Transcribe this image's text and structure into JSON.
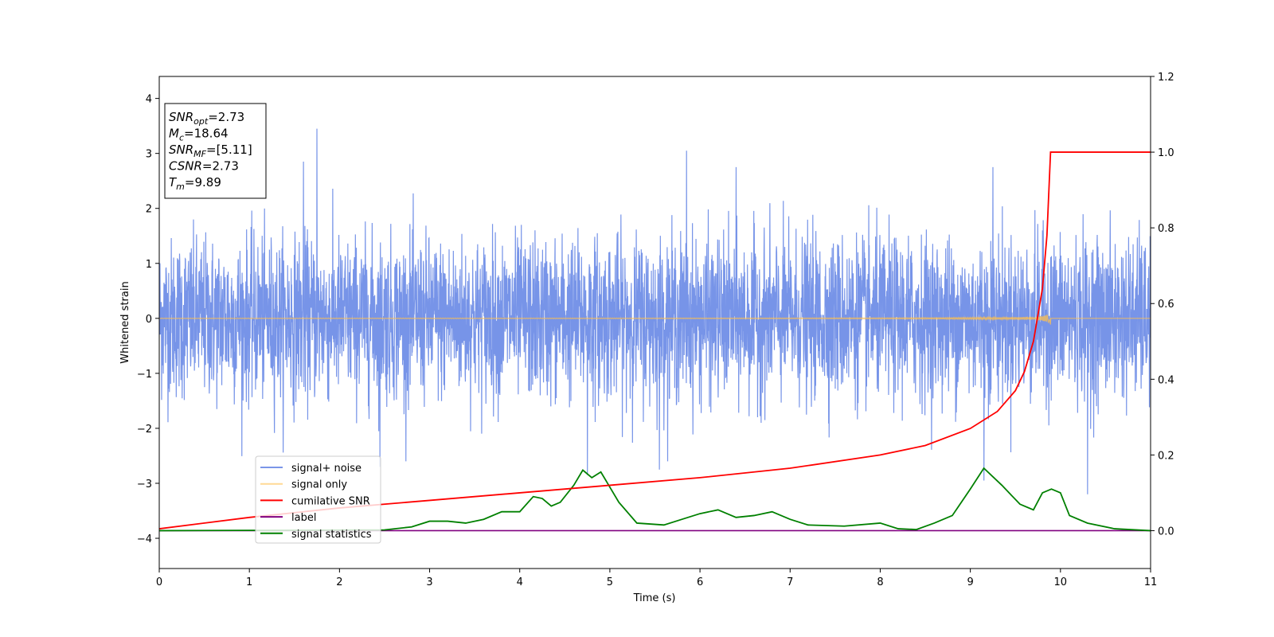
{
  "chart_data": {
    "type": "line",
    "xlabel": "Time (s)",
    "ylabel": "Whitened strain",
    "xlim": [
      0,
      11
    ],
    "ylim": [
      -4.55,
      4.4
    ],
    "y2lim": [
      -0.1,
      1.2
    ],
    "xticks": [
      "0",
      "1",
      "2",
      "3",
      "4",
      "5",
      "6",
      "7",
      "8",
      "9",
      "10",
      "11"
    ],
    "yticks": [
      "−4",
      "−3",
      "−2",
      "−1",
      "0",
      "1",
      "2",
      "3",
      "4"
    ],
    "y2ticks": [
      "0.0",
      "0.2",
      "0.4",
      "0.6",
      "0.8",
      "1.0",
      "1.2"
    ],
    "grid": false,
    "legend_position": "lower-left",
    "info_box": [
      {
        "base": "SNR",
        "sub": "opt",
        "rest": "=2.73"
      },
      {
        "base": "M",
        "sub": "c",
        "rest": "=18.64"
      },
      {
        "base": "SNR",
        "sub": "MF",
        "rest": "=[5.11]"
      },
      {
        "base": "CSNR",
        "sub": "",
        "rest": "=2.73"
      },
      {
        "base": "T",
        "sub": "m",
        "rest": "=9.89"
      }
    ],
    "series": [
      {
        "name": "signal+ noise",
        "axis": "left",
        "color": "#6b8be6",
        "noise_sigma": 0.72,
        "peak_points": [
          [
            1.75,
            3.45
          ],
          [
            5.85,
            3.05
          ],
          [
            1.6,
            2.85
          ],
          [
            6.4,
            2.75
          ],
          [
            9.25,
            2.75
          ],
          [
            4.75,
            -2.85
          ],
          [
            10.3,
            -3.2
          ],
          [
            9.15,
            -2.95
          ],
          [
            5.55,
            -2.75
          ],
          [
            2.45,
            -2.7
          ]
        ]
      },
      {
        "name": "signal only",
        "axis": "left",
        "color": "#ffc04d",
        "chirp_start": 0,
        "chirp_end": 9.89,
        "max_amplitude": 0.45
      },
      {
        "name": "cumilative SNR",
        "axis": "right",
        "color": "#ff0000",
        "x": [
          0,
          1,
          2,
          3,
          4,
          5,
          6,
          7,
          8,
          8.5,
          9,
          9.3,
          9.5,
          9.6,
          9.7,
          9.8,
          9.85,
          9.89,
          11
        ],
        "y": [
          0.005,
          0.035,
          0.06,
          0.08,
          0.1,
          0.12,
          0.14,
          0.165,
          0.2,
          0.225,
          0.27,
          0.315,
          0.37,
          0.42,
          0.5,
          0.64,
          0.78,
          1.0,
          1.0
        ]
      },
      {
        "name": "label",
        "axis": "right",
        "color": "#800080",
        "x": [
          0,
          11
        ],
        "y": [
          0,
          0
        ]
      },
      {
        "name": "signal statistics",
        "axis": "right",
        "color": "#008000",
        "x": [
          0,
          2.5,
          2.8,
          3.0,
          3.2,
          3.4,
          3.6,
          3.8,
          4.0,
          4.15,
          4.25,
          4.35,
          4.45,
          4.6,
          4.7,
          4.8,
          4.9,
          5.0,
          5.1,
          5.3,
          5.6,
          5.8,
          6.0,
          6.2,
          6.4,
          6.6,
          6.8,
          7.0,
          7.2,
          7.6,
          8.0,
          8.2,
          8.4,
          8.6,
          8.8,
          9.0,
          9.15,
          9.35,
          9.55,
          9.7,
          9.8,
          9.9,
          10.0,
          10.1,
          10.3,
          10.6,
          11
        ],
        "y": [
          0,
          0.002,
          0.01,
          0.025,
          0.025,
          0.02,
          0.03,
          0.05,
          0.05,
          0.09,
          0.085,
          0.065,
          0.075,
          0.12,
          0.16,
          0.14,
          0.155,
          0.115,
          0.075,
          0.02,
          0.015,
          0.03,
          0.045,
          0.055,
          0.035,
          0.04,
          0.05,
          0.03,
          0.015,
          0.012,
          0.02,
          0.005,
          0.003,
          0.02,
          0.04,
          0.11,
          0.165,
          0.12,
          0.07,
          0.055,
          0.1,
          0.11,
          0.1,
          0.04,
          0.02,
          0.005,
          0
        ]
      }
    ]
  }
}
